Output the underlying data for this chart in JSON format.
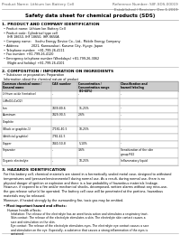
{
  "header_left": "Product Name: Lithium Ion Battery Cell",
  "header_right_line1": "Reference Number: SIIF-SDS-00019",
  "header_right_line2": "Established / Revision: Dec.1.2019",
  "title": "Safety data sheet for chemical products (SDS)",
  "section1_title": "1. PRODUCT AND COMPANY IDENTIFICATION",
  "section1_items": [
    "Product name: Lithium Ion Battery Cell",
    "Product code: Cylindrical type cell",
    "     IHR 18650, IHF 18650, IHR 8650A",
    "Company name:    Itochu Energy Device Co., Ltd., Mobile Energy Company",
    "Address:            2021, Kannazukuri, Kurume City, Hyogo, Japan",
    "Telephone number:  +81-799-26-4111",
    "Fax number: +81-799-26-4120",
    "Emergency telephone number (Weekdays) +81-799-26-3062",
    "                                (Night and holiday) +81-799-26-4101"
  ],
  "section2_title": "2. COMPOSITION / INFORMATION ON INGREDIENTS",
  "section2_subtitle": "Substance or preparation: Preparation",
  "section2_table_header": "Information about the chemical nature of product",
  "table_col1": "Common chemical name /\nGeneral name",
  "table_col2": "CAS number",
  "table_col3": "Concentration /\nConcentration range\n(30-60%)",
  "table_col4": "Classification and\nhazard labeling",
  "table_rows": [
    [
      "Lithium oxide (tentative)",
      "-",
      "-",
      "-"
    ],
    [
      "(LiMnO/LiCoO2)",
      "",
      "",
      ""
    ],
    [
      "Iron",
      "7439-89-6",
      "15-25%",
      "-"
    ],
    [
      "Aluminum",
      "7429-90-5",
      "2-6%",
      "-"
    ],
    [
      "Graphite",
      "",
      "",
      ""
    ],
    [
      "(Black or graphite-1)",
      "77182-40-5",
      "10-25%",
      "-"
    ],
    [
      "(Artificial graphite)",
      "7782-42-5",
      "",
      ""
    ],
    [
      "Copper",
      "7440-50-8",
      "5-10%",
      "-"
    ],
    [
      "Separator",
      "-",
      "3-6%",
      "Sensitization of the skin\ngroup R42"
    ],
    [
      "Organic electrolyte",
      "-",
      "10-25%",
      "Inflammatory liquid"
    ]
  ],
  "section3_title": "3. HAZARDS IDENTIFICATION",
  "section3_body": [
    "For this battery cell, chemical materials are stored in a hermetically sealed metal case, designed to withstand",
    "temperatures and (pressure/environmental) during normal use. As a result, during normal use, there is no",
    "physical danger of ignition or explosion and there is a low probability of hazardous materials leakage.",
    "However, if exposed to a fire and/or mechanical shocks, decomposed, written alarms without any miss-use,",
    "the gas release valve(s) be operated. The battery cell case will be penetrated at the portions, hazardous",
    "materials may be released."
  ],
  "section3_note": "Moreover, if heated strongly by the surrounding fire, toxic gas may be emitted.",
  "section3_bullet1_title": "Most important hazard and effects:",
  "section3_bullet1_sub": "Human health effects:",
  "section3_bullet1_items": [
    "Inhalation: The release of the electrolyte has an anesthesia action and stimulates a respiratory tract.",
    "Skin contact: The release of the electrolyte stimulates a skin. The electrolyte skin contact causes a",
    "sore and stimulation on the skin.",
    "Eye contact: The release of the electrolyte stimulates eyes. The electrolyte eye contact causes a sore",
    "and stimulation on the eye. Especially, a substance that causes a strong inflammation of the eyes is",
    "contained.",
    "Environmental effects: Since a battery cell remains in the environment, do not throw out it into the",
    "environment."
  ],
  "section3_bullet2_title": "Specific hazards:",
  "section3_bullet2_items": [
    "If the electrolyte contacts with water, it will generate detrimental hydrogen fluoride.",
    "Since the liquid electrolyte is inflammatory liquid, do not bring close to fire."
  ],
  "bg_color": "#ffffff",
  "text_color": "#000000",
  "gray_text": "#444444",
  "line_color": "#aaaaaa",
  "table_header_bg": "#cccccc",
  "table_line_color": "#999999"
}
